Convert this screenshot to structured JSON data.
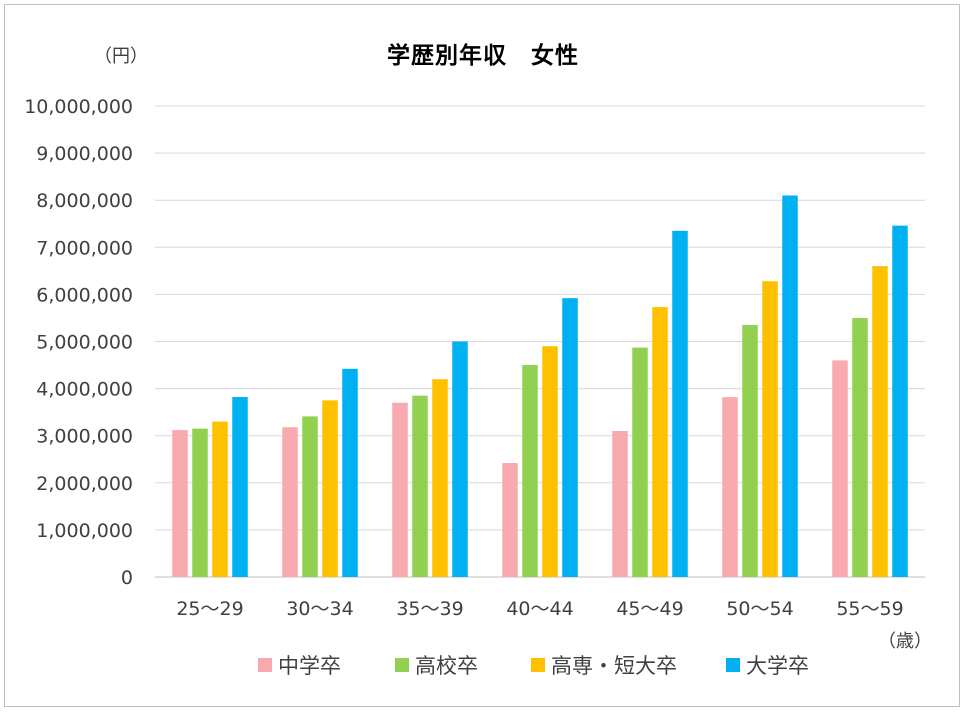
{
  "chart_data": {
    "type": "bar",
    "title": "学歴別年収　女性",
    "ylabel": "（円）",
    "xlabel": "（歳）",
    "ylim": [
      0,
      10000000
    ],
    "yticks": [
      0,
      1000000,
      2000000,
      3000000,
      4000000,
      5000000,
      6000000,
      7000000,
      8000000,
      9000000,
      10000000
    ],
    "ytick_labels": [
      "0",
      "1,000,000",
      "2,000,000",
      "3,000,000",
      "4,000,000",
      "5,000,000",
      "6,000,000",
      "7,000,000",
      "8,000,000",
      "9,000,000",
      "10,000,000"
    ],
    "categories": [
      "25～29",
      "30～34",
      "35～39",
      "40～44",
      "45～49",
      "50～54",
      "55～59"
    ],
    "grid": true,
    "legend_position": "bottom",
    "series": [
      {
        "name": "中学卒",
        "color": "#f8aaaf",
        "values": [
          3120000,
          3180000,
          3700000,
          2420000,
          3100000,
          3820000,
          4600000
        ]
      },
      {
        "name": "高校卒",
        "color": "#92d050",
        "values": [
          3150000,
          3410000,
          3850000,
          4500000,
          4870000,
          5350000,
          5500000
        ]
      },
      {
        "name": "高専・短大卒",
        "color": "#ffc000",
        "values": [
          3300000,
          3750000,
          4200000,
          4900000,
          5730000,
          6280000,
          6600000
        ]
      },
      {
        "name": "大学卒",
        "color": "#00b0f0",
        "values": [
          3820000,
          4420000,
          5000000,
          5920000,
          7350000,
          8100000,
          7460000
        ]
      }
    ]
  }
}
